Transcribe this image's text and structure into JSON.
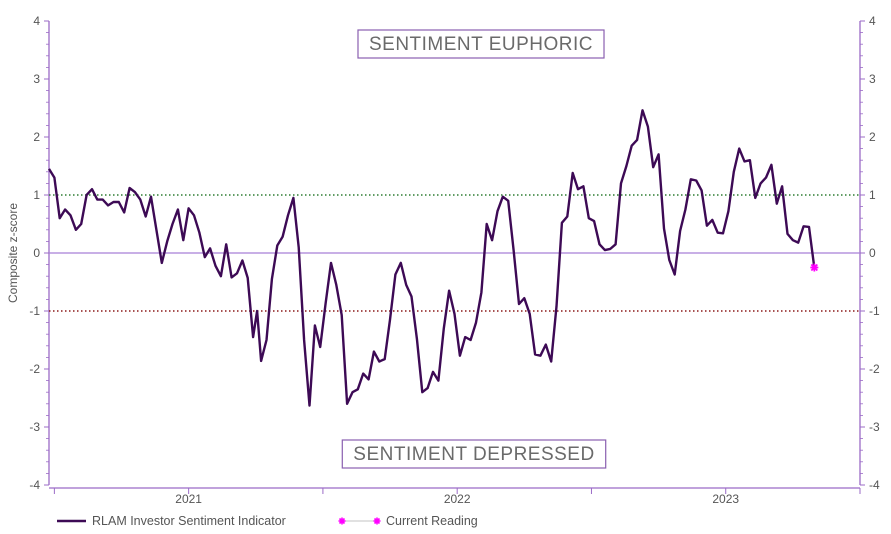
{
  "chart_data": {
    "type": "line",
    "ylabel": "Composite z-score",
    "ylim": [
      -4,
      4
    ],
    "y_ticks": [
      "4",
      "3",
      "2",
      "1",
      "0",
      "-1",
      "-2",
      "-3",
      "-4"
    ],
    "x_tick_labels": [
      "2021",
      "2022",
      "2023"
    ],
    "xlim": [
      2020.48,
      2023.5
    ],
    "grid": false,
    "reference_lines": [
      {
        "value": 1,
        "style": "dotted",
        "color": "#2e7d32"
      },
      {
        "value": 0,
        "style": "solid",
        "color": "#a77fd6"
      },
      {
        "value": -1,
        "style": "dotted",
        "color": "#8b1a1a"
      }
    ],
    "annotations": {
      "top": "SENTIMENT EUPHORIC",
      "bottom": "SENTIMENT DEPRESSED"
    },
    "series": [
      {
        "name": "RLAM Investor Sentiment Indicator",
        "color": "#3d0a55",
        "points": [
          [
            2020.48,
            1.45
          ],
          [
            2020.5,
            1.3
          ],
          [
            2020.52,
            0.6
          ],
          [
            2020.54,
            0.75
          ],
          [
            2020.56,
            0.65
          ],
          [
            2020.58,
            0.4
          ],
          [
            2020.6,
            0.5
          ],
          [
            2020.62,
            1.0
          ],
          [
            2020.64,
            1.1
          ],
          [
            2020.66,
            0.92
          ],
          [
            2020.68,
            0.92
          ],
          [
            2020.7,
            0.82
          ],
          [
            2020.72,
            0.88
          ],
          [
            2020.74,
            0.88
          ],
          [
            2020.76,
            0.7
          ],
          [
            2020.78,
            1.12
          ],
          [
            2020.8,
            1.05
          ],
          [
            2020.82,
            0.92
          ],
          [
            2020.84,
            0.63
          ],
          [
            2020.86,
            0.97
          ],
          [
            2020.88,
            0.4
          ],
          [
            2020.9,
            -0.17
          ],
          [
            2020.92,
            0.2
          ],
          [
            2020.94,
            0.5
          ],
          [
            2020.96,
            0.75
          ],
          [
            2020.98,
            0.22
          ],
          [
            2021.0,
            0.77
          ],
          [
            2021.02,
            0.65
          ],
          [
            2021.04,
            0.35
          ],
          [
            2021.06,
            -0.07
          ],
          [
            2021.08,
            0.08
          ],
          [
            2021.1,
            -0.22
          ],
          [
            2021.12,
            -0.4
          ],
          [
            2021.14,
            0.15
          ],
          [
            2021.16,
            -0.42
          ],
          [
            2021.18,
            -0.35
          ],
          [
            2021.2,
            -0.13
          ],
          [
            2021.22,
            -0.43
          ],
          [
            2021.24,
            -1.45
          ],
          [
            2021.255,
            -1.0
          ],
          [
            2021.27,
            -1.86
          ],
          [
            2021.29,
            -1.5
          ],
          [
            2021.31,
            -0.45
          ],
          [
            2021.33,
            0.13
          ],
          [
            2021.35,
            0.28
          ],
          [
            2021.37,
            0.65
          ],
          [
            2021.39,
            0.95
          ],
          [
            2021.41,
            0.1
          ],
          [
            2021.43,
            -1.5
          ],
          [
            2021.45,
            -2.63
          ],
          [
            2021.47,
            -1.25
          ],
          [
            2021.49,
            -1.62
          ],
          [
            2021.51,
            -0.87
          ],
          [
            2021.53,
            -0.17
          ],
          [
            2021.55,
            -0.55
          ],
          [
            2021.57,
            -1.07
          ],
          [
            2021.59,
            -2.6
          ],
          [
            2021.61,
            -2.4
          ],
          [
            2021.63,
            -2.35
          ],
          [
            2021.65,
            -2.08
          ],
          [
            2021.67,
            -2.18
          ],
          [
            2021.69,
            -1.7
          ],
          [
            2021.71,
            -1.87
          ],
          [
            2021.73,
            -1.83
          ],
          [
            2021.75,
            -1.15
          ],
          [
            2021.77,
            -0.37
          ],
          [
            2021.79,
            -0.17
          ],
          [
            2021.81,
            -0.55
          ],
          [
            2021.83,
            -0.75
          ],
          [
            2021.85,
            -1.48
          ],
          [
            2021.87,
            -2.4
          ],
          [
            2021.89,
            -2.33
          ],
          [
            2021.91,
            -2.05
          ],
          [
            2021.93,
            -2.2
          ],
          [
            2021.95,
            -1.3
          ],
          [
            2021.97,
            -0.65
          ],
          [
            2021.99,
            -1.05
          ],
          [
            2022.01,
            -1.77
          ],
          [
            2022.03,
            -1.45
          ],
          [
            2022.05,
            -1.5
          ],
          [
            2022.07,
            -1.2
          ],
          [
            2022.09,
            -0.68
          ],
          [
            2022.11,
            0.5
          ],
          [
            2022.13,
            0.22
          ],
          [
            2022.15,
            0.72
          ],
          [
            2022.17,
            0.97
          ],
          [
            2022.19,
            0.9
          ],
          [
            2022.21,
            0.05
          ],
          [
            2022.23,
            -0.88
          ],
          [
            2022.25,
            -0.78
          ],
          [
            2022.27,
            -1.05
          ],
          [
            2022.29,
            -1.75
          ],
          [
            2022.31,
            -1.77
          ],
          [
            2022.33,
            -1.58
          ],
          [
            2022.35,
            -1.87
          ],
          [
            2022.37,
            -0.92
          ],
          [
            2022.39,
            0.52
          ],
          [
            2022.41,
            0.63
          ],
          [
            2022.43,
            1.38
          ],
          [
            2022.45,
            1.1
          ],
          [
            2022.47,
            1.15
          ],
          [
            2022.49,
            0.6
          ],
          [
            2022.51,
            0.55
          ],
          [
            2022.53,
            0.15
          ],
          [
            2022.55,
            0.05
          ],
          [
            2022.57,
            0.07
          ],
          [
            2022.59,
            0.15
          ],
          [
            2022.61,
            1.2
          ],
          [
            2022.63,
            1.5
          ],
          [
            2022.65,
            1.85
          ],
          [
            2022.67,
            1.95
          ],
          [
            2022.69,
            2.46
          ],
          [
            2022.71,
            2.18
          ],
          [
            2022.73,
            1.48
          ],
          [
            2022.75,
            1.7
          ],
          [
            2022.77,
            0.42
          ],
          [
            2022.79,
            -0.12
          ],
          [
            2022.81,
            -0.37
          ],
          [
            2022.83,
            0.38
          ],
          [
            2022.85,
            0.75
          ],
          [
            2022.87,
            1.27
          ],
          [
            2022.89,
            1.25
          ],
          [
            2022.91,
            1.08
          ],
          [
            2022.93,
            0.47
          ],
          [
            2022.95,
            0.57
          ],
          [
            2022.97,
            0.35
          ],
          [
            2022.99,
            0.34
          ],
          [
            2023.01,
            0.72
          ],
          [
            2023.03,
            1.4
          ],
          [
            2023.05,
            1.8
          ],
          [
            2023.07,
            1.58
          ],
          [
            2023.09,
            1.6
          ],
          [
            2023.11,
            0.95
          ],
          [
            2023.13,
            1.2
          ],
          [
            2023.15,
            1.3
          ],
          [
            2023.17,
            1.52
          ],
          [
            2023.19,
            0.85
          ],
          [
            2023.21,
            1.15
          ],
          [
            2023.23,
            0.33
          ],
          [
            2023.25,
            0.22
          ],
          [
            2023.27,
            0.18
          ],
          [
            2023.29,
            0.46
          ],
          [
            2023.31,
            0.45
          ],
          [
            2023.33,
            -0.25
          ]
        ]
      },
      {
        "name": "Current Reading",
        "color": "#ff00ff",
        "marker": "asterisk",
        "points": [
          [
            2023.33,
            -0.25
          ]
        ]
      }
    ],
    "legend_position": "bottom-left"
  }
}
